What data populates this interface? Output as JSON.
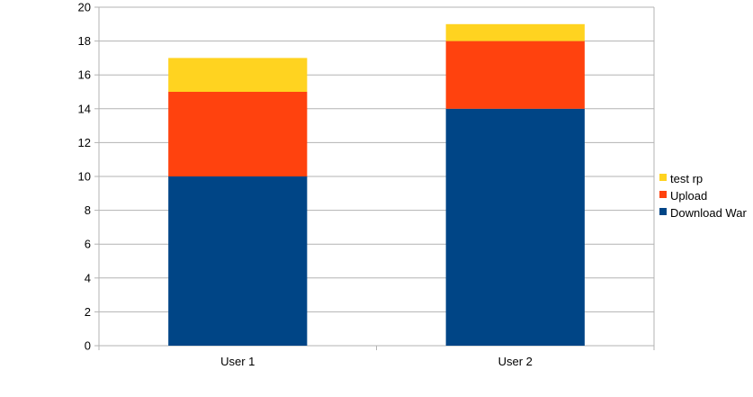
{
  "chart_data": {
    "type": "bar",
    "stacked": true,
    "categories": [
      "User 1",
      "User 2"
    ],
    "series": [
      {
        "name": "Download War",
        "values": [
          10,
          14
        ],
        "color": "#004586"
      },
      {
        "name": "Upload",
        "values": [
          5,
          4
        ],
        "color": "#ff420e"
      },
      {
        "name": "test rp",
        "values": [
          2,
          1
        ],
        "color": "#ffd320"
      }
    ],
    "ylim": [
      0,
      20
    ],
    "yticks": [
      0,
      2,
      4,
      6,
      8,
      10,
      12,
      14,
      16,
      18,
      20
    ],
    "grid": true,
    "legend_position": "right",
    "title": "",
    "xlabel": "",
    "ylabel": ""
  }
}
